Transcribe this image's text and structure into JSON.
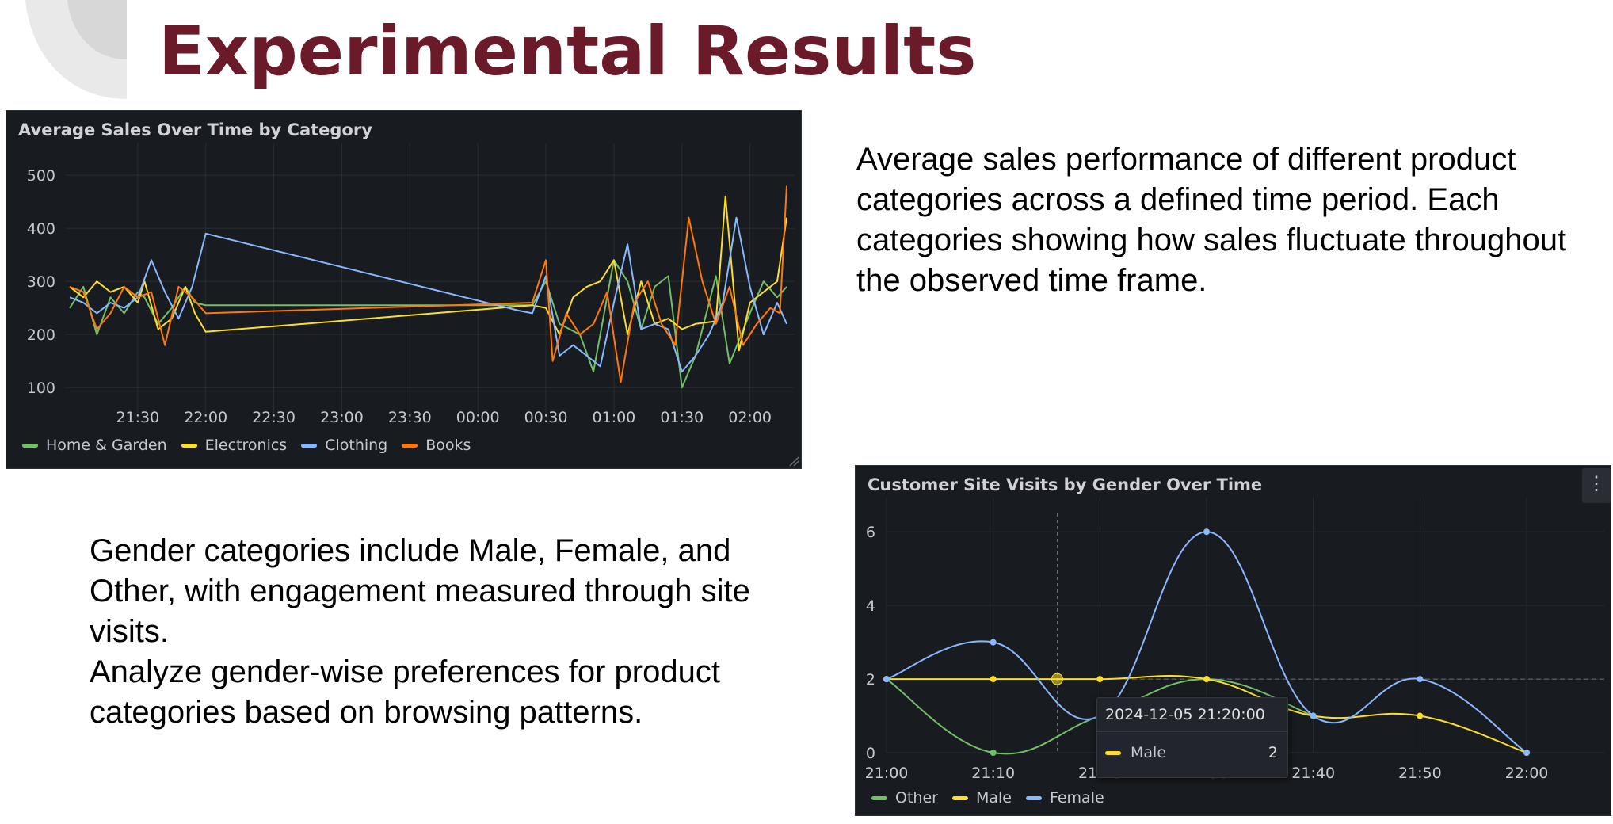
{
  "slide": {
    "title": "Experimental Results",
    "paragraph_sales": "Average sales performance of different product categories across a defined time period. Each categories showing how sales fluctuate throughout the observed time frame.",
    "paragraph_gender": "Gender categories include Male, Female, and Other, with engagement measured through site visits.\nAnalyze gender-wise preferences for product categories based on browsing patterns."
  },
  "colors": {
    "title": "#6b1a29",
    "panel_bg": "#181b1f",
    "green": "#73bf69",
    "yellow": "#fade2a",
    "blue": "#8ab8ff",
    "orange": "#ff780a"
  },
  "chart_data": [
    {
      "type": "line",
      "title": "Average Sales Over Time by Category",
      "ylim": [
        60,
        530
      ],
      "y_ticks": [
        100,
        200,
        300,
        400,
        500
      ],
      "x_ticks": [
        "21:30",
        "22:00",
        "22:30",
        "23:00",
        "23:30",
        "00:00",
        "00:30",
        "01:00",
        "01:30",
        "02:00"
      ],
      "x_range_hours": [
        21.0,
        26.27
      ],
      "grid": true,
      "legend_position": "bottom-left",
      "series": [
        {
          "name": "Home & Garden",
          "color": "#73bf69",
          "x_hours": [
            21.0,
            21.1,
            21.2,
            21.3,
            21.4,
            21.5,
            21.55,
            21.65,
            21.75,
            21.85,
            21.92,
            22.0,
            24.4,
            24.5,
            24.6,
            24.75,
            24.85,
            25.0,
            25.1,
            25.2,
            25.3,
            25.4,
            25.5,
            25.6,
            25.75,
            25.85,
            26.0,
            26.1,
            26.2,
            26.27
          ],
          "values": [
            250,
            290,
            200,
            270,
            240,
            280,
            270,
            220,
            250,
            290,
            260,
            255,
            255,
            300,
            220,
            200,
            130,
            340,
            300,
            210,
            290,
            310,
            100,
            160,
            310,
            145,
            240,
            300,
            270,
            290
          ]
        },
        {
          "name": "Electronics",
          "color": "#fade2a",
          "x_hours": [
            21.0,
            21.1,
            21.2,
            21.3,
            21.4,
            21.5,
            21.55,
            21.65,
            21.75,
            21.85,
            21.92,
            22.0,
            24.4,
            24.5,
            24.6,
            24.7,
            24.8,
            24.9,
            25.0,
            25.1,
            25.2,
            25.3,
            25.4,
            25.5,
            25.6,
            25.75,
            25.82,
            25.92,
            26.0,
            26.1,
            26.2,
            26.27
          ],
          "values": [
            290,
            270,
            300,
            280,
            290,
            260,
            300,
            210,
            230,
            290,
            240,
            205,
            255,
            250,
            200,
            270,
            290,
            300,
            340,
            200,
            300,
            220,
            230,
            210,
            220,
            225,
            460,
            170,
            260,
            280,
            300,
            420
          ]
        },
        {
          "name": "Clothing",
          "color": "#8ab8ff",
          "x_hours": [
            21.0,
            21.1,
            21.2,
            21.3,
            21.4,
            21.5,
            21.6,
            21.7,
            21.8,
            21.9,
            22.0,
            24.3,
            24.4,
            24.5,
            24.6,
            24.7,
            24.8,
            24.9,
            25.0,
            25.1,
            25.2,
            25.3,
            25.4,
            25.5,
            25.6,
            25.7,
            25.8,
            25.9,
            26.0,
            26.1,
            26.2,
            26.27
          ],
          "values": [
            270,
            260,
            240,
            260,
            250,
            270,
            340,
            280,
            230,
            290,
            390,
            245,
            240,
            310,
            160,
            180,
            160,
            140,
            260,
            370,
            210,
            220,
            210,
            130,
            160,
            200,
            260,
            420,
            290,
            200,
            260,
            220
          ]
        },
        {
          "name": "Books",
          "color": "#ff780a",
          "x_hours": [
            21.0,
            21.1,
            21.2,
            21.3,
            21.4,
            21.5,
            21.6,
            21.7,
            21.8,
            21.9,
            22.0,
            24.4,
            24.5,
            24.55,
            24.65,
            24.75,
            24.85,
            24.95,
            25.05,
            25.15,
            25.25,
            25.35,
            25.45,
            25.55,
            25.65,
            25.75,
            25.85,
            25.95,
            26.05,
            26.15,
            26.22,
            26.27
          ],
          "values": [
            290,
            280,
            210,
            240,
            290,
            270,
            280,
            180,
            290,
            270,
            240,
            260,
            340,
            150,
            240,
            200,
            220,
            280,
            110,
            260,
            300,
            220,
            180,
            420,
            300,
            220,
            290,
            180,
            220,
            250,
            240,
            480
          ]
        }
      ]
    },
    {
      "type": "line",
      "title": "Customer Site Visits by Gender Over Time",
      "ylim": [
        0,
        6.5
      ],
      "y_ticks": [
        0,
        2,
        4,
        6
      ],
      "x_ticks": [
        "21:00",
        "21:10",
        "21:20",
        "21:30",
        "21:40",
        "21:50",
        "22:00"
      ],
      "grid": true,
      "legend_position": "bottom-left",
      "series": [
        {
          "name": "Other",
          "color": "#73bf69",
          "x": [
            "21:00",
            "21:10",
            "21:20",
            "21:30",
            "21:40"
          ],
          "values": [
            2,
            0,
            1,
            2,
            1
          ]
        },
        {
          "name": "Male",
          "color": "#fade2a",
          "x": [
            "21:00",
            "21:10",
            "21:20",
            "21:30",
            "21:40",
            "21:50",
            "22:00"
          ],
          "values": [
            2,
            2,
            2,
            2,
            1,
            1,
            0
          ]
        },
        {
          "name": "Female",
          "color": "#8ab8ff",
          "x": [
            "21:00",
            "21:10",
            "21:20",
            "21:30",
            "21:40",
            "21:50",
            "22:00"
          ],
          "values": [
            2,
            3,
            1,
            6,
            1,
            2,
            0
          ]
        }
      ],
      "threshold_line": 2,
      "tooltip": {
        "time": "2024-12-05 21:20:00",
        "series": "Male",
        "value": "2"
      }
    }
  ]
}
